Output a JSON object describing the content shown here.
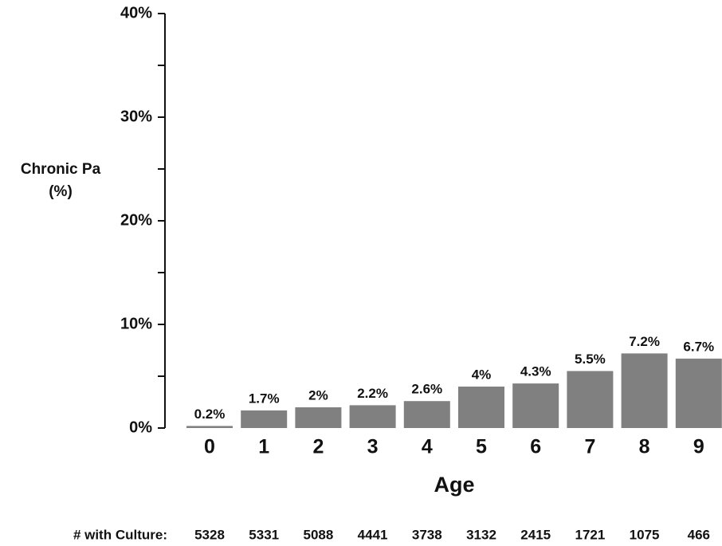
{
  "chart_data": {
    "type": "bar",
    "ylabel": [
      "Chronic Pa",
      "(%)"
    ],
    "xlabel": "Age",
    "categories": [
      "0",
      "1",
      "2",
      "3",
      "4",
      "5",
      "6",
      "7",
      "8",
      "9"
    ],
    "values": [
      0.2,
      1.7,
      2,
      2.2,
      2.6,
      4,
      4.3,
      5.5,
      7.2,
      6.7
    ],
    "value_labels": [
      "0.2%",
      "1.7%",
      "2%",
      "2.2%",
      "2.6%",
      "4%",
      "4.3%",
      "5.5%",
      "7.2%",
      "6.7%"
    ],
    "color": "#808080",
    "ylim": [
      0,
      40
    ],
    "yticks": [
      {
        "value": 0,
        "label": "0%"
      },
      {
        "value": 10,
        "label": "10%"
      },
      {
        "value": 20,
        "label": "20%"
      },
      {
        "value": 30,
        "label": "30%"
      },
      {
        "value": 40,
        "label": "40%"
      }
    ],
    "minor_yticks": [
      5,
      15,
      25,
      35
    ],
    "grid": false,
    "culture_label": "# with Culture:",
    "culture_counts": [
      5328,
      5331,
      5088,
      4441,
      3738,
      3132,
      2415,
      1721,
      1075,
      466
    ]
  }
}
